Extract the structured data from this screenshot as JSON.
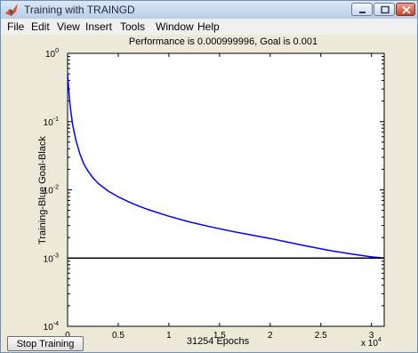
{
  "window": {
    "title": "Training with TRAINGD"
  },
  "menu": {
    "items": [
      "File",
      "Edit",
      "View",
      "Insert",
      "Tools",
      "Window",
      "Help"
    ]
  },
  "colors": {
    "training_line": "#0000ff",
    "goal_line": "#000000",
    "figure_bg": "#ece9d8"
  },
  "icons": {
    "app": "matlab-icon",
    "minimize": "minimize-icon",
    "maximize": "maximize-icon",
    "close": "close-icon"
  },
  "stop_button": {
    "label": "Stop Training"
  },
  "chart_data": {
    "type": "line",
    "title": "Performance is 0.000999996, Goal is 0.001",
    "xlabel": "31254 Epochs",
    "ylabel": "Training-Blue  Goal-Black",
    "x_exponent_label": "x 10",
    "x_exponent": "4",
    "xlim": [
      0,
      31254
    ],
    "ylim": [
      0.0001,
      1
    ],
    "yscale": "log",
    "x_ticks": [
      0,
      5000,
      10000,
      15000,
      20000,
      25000,
      30000
    ],
    "x_tick_labels": [
      "0",
      "0.5",
      "1",
      "1.5",
      "2",
      "2.5",
      "3"
    ],
    "y_ticks": [
      {
        "value": 1,
        "base": "10",
        "exp": "0"
      },
      {
        "value": 0.1,
        "base": "10",
        "exp": "-1"
      },
      {
        "value": 0.01,
        "base": "10",
        "exp": "-2"
      },
      {
        "value": 0.001,
        "base": "10",
        "exp": "-3"
      },
      {
        "value": 0.0001,
        "base": "10",
        "exp": "-4"
      }
    ],
    "series": [
      {
        "name": "Training",
        "color": "#0000ff",
        "x": [
          0,
          100,
          200,
          300,
          500,
          800,
          1200,
          1600,
          2000,
          2500,
          3000,
          4000,
          5000,
          6000,
          7000,
          8000,
          10000,
          12000,
          14000,
          16000,
          18000,
          20000,
          22000,
          24000,
          26000,
          28000,
          30000,
          31254
        ],
        "y": [
          0.5,
          0.32,
          0.2,
          0.15,
          0.09,
          0.055,
          0.034,
          0.024,
          0.019,
          0.015,
          0.0125,
          0.0096,
          0.0079,
          0.0067,
          0.0058,
          0.0051,
          0.0041,
          0.0034,
          0.0029,
          0.0025,
          0.0022,
          0.00194,
          0.00168,
          0.00146,
          0.00128,
          0.00115,
          0.00104,
          0.001
        ]
      },
      {
        "name": "Goal",
        "color": "#000000",
        "x": [
          0,
          31254
        ],
        "y": [
          0.001,
          0.001
        ]
      }
    ]
  }
}
